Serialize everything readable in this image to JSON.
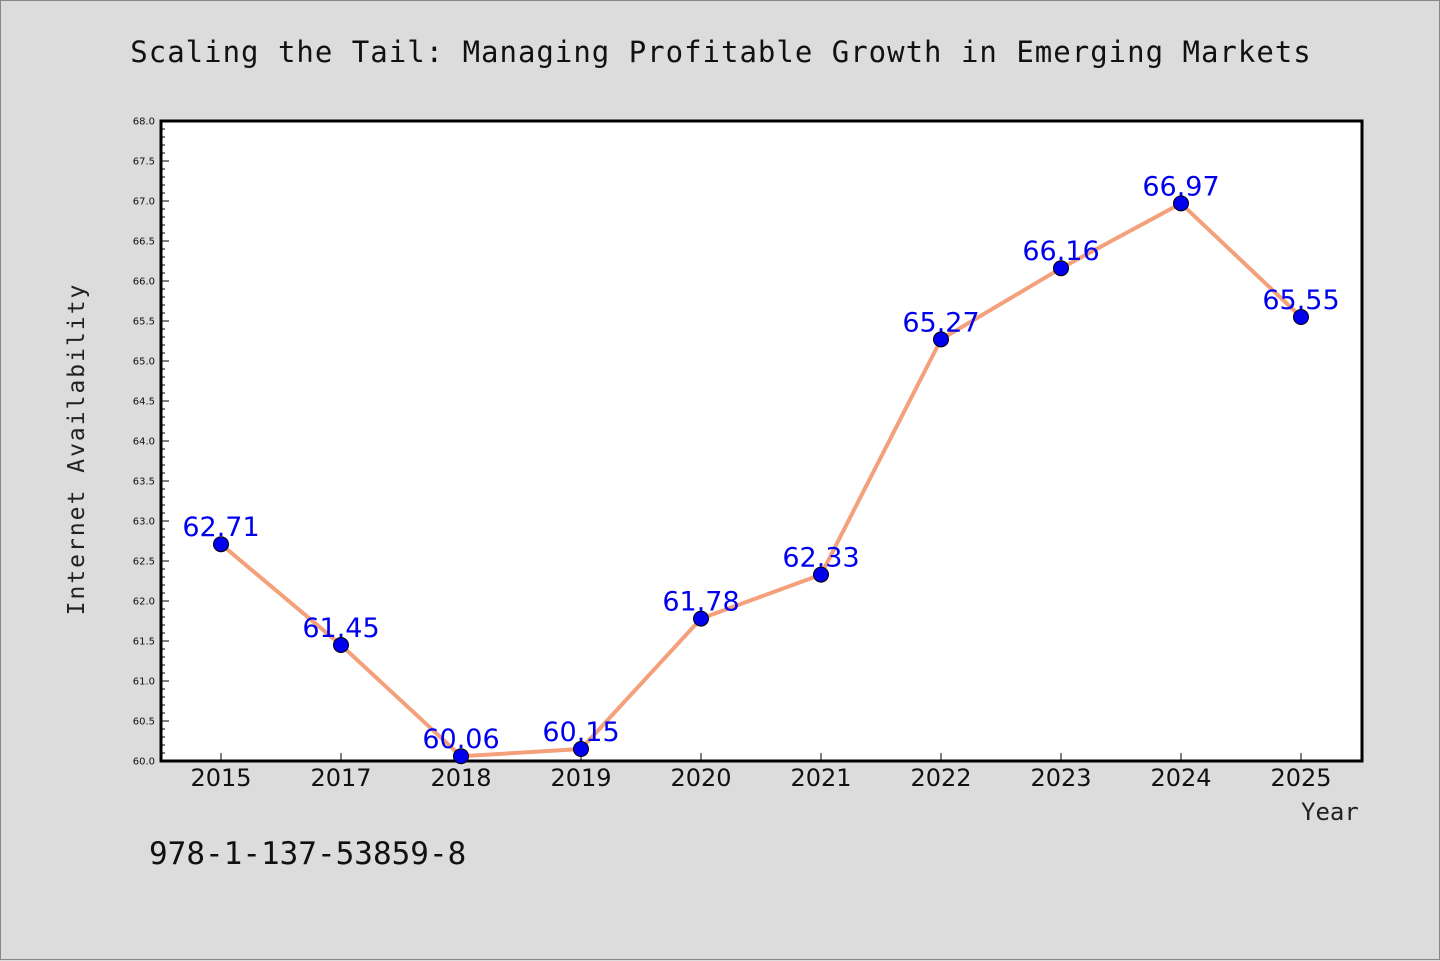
{
  "page": {
    "title": "Scaling the Tail: Managing Profitable Growth in Emerging Markets",
    "footer_code": "978-1-137-53859-8"
  },
  "chart_data": {
    "type": "line",
    "title": "Scaling the Tail: Managing Profitable Growth in Emerging Markets",
    "xlabel": "Year",
    "ylabel": "Internet Availability",
    "categories": [
      "2015",
      "2017",
      "2018",
      "2019",
      "2020",
      "2021",
      "2022",
      "2023",
      "2024",
      "2025"
    ],
    "series": [
      {
        "values": [
          62.71,
          61.45,
          60.06,
          60.15,
          61.78,
          62.33,
          65.27,
          66.16,
          66.97,
          65.55
        ],
        "labels": [
          "62.71",
          "61.45",
          "60.06",
          "60.15",
          "61.78",
          "62.33",
          "65.27",
          "66.16",
          "66.97",
          "65.55"
        ],
        "line_color": "#f4a07a",
        "marker_color": "#0000ee"
      }
    ],
    "ylim": [
      60.0,
      68.0
    ],
    "y_ticks": [
      "60.0",
      "60.5",
      "61.0",
      "61.5",
      "62.0",
      "62.5",
      "63.0",
      "63.5",
      "64.0",
      "64.5",
      "65.0",
      "65.5",
      "66.0",
      "66.5",
      "67.0",
      "67.5",
      "68.0"
    ],
    "grid": false,
    "legend": "none",
    "plot_background": "#ffffff",
    "page_background": "#dcdcdc"
  }
}
